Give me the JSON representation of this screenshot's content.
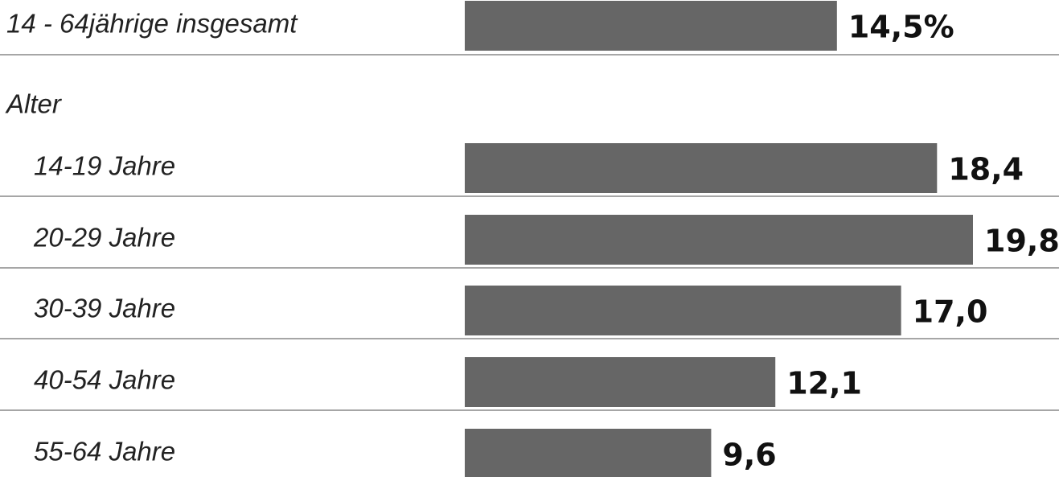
{
  "chart_data": {
    "type": "bar",
    "orientation": "horizontal",
    "categories": [
      "14 - 64jährige insgesamt",
      "14-19 Jahre",
      "20-29 Jahre",
      "30-39 Jahre",
      "40-54 Jahre",
      "55-64 Jahre"
    ],
    "values": [
      14.5,
      18.4,
      19.8,
      17.0,
      12.1,
      9.6
    ],
    "value_labels": [
      "14,5%",
      "18,4",
      "19,8",
      "17,0",
      "12,1",
      "9,6"
    ],
    "group_label": "Alter",
    "color": "#666666"
  }
}
